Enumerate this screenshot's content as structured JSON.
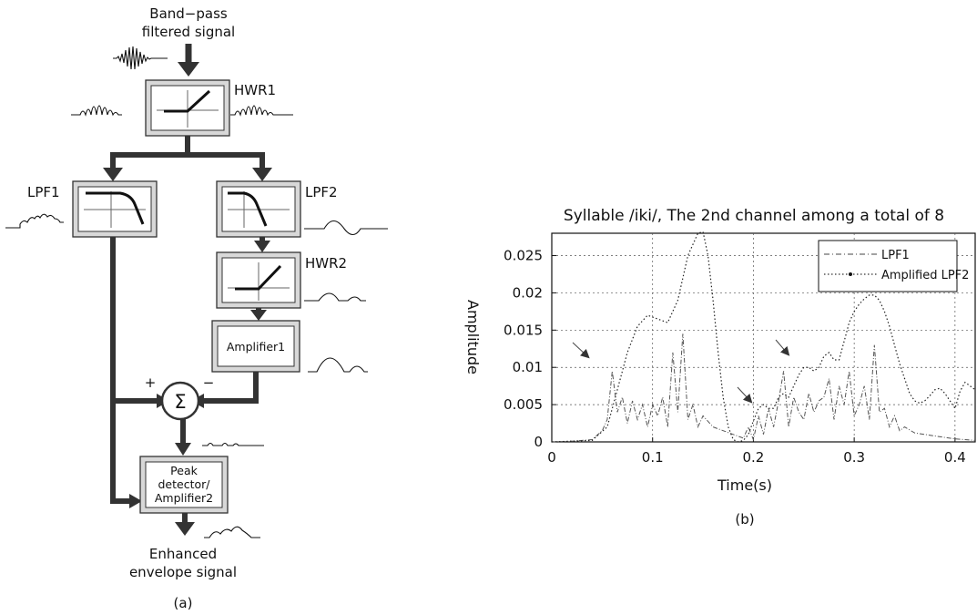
{
  "panel_a": {
    "input_label_1": "Band−pass",
    "input_label_2": "filtered signal",
    "hwr1": "HWR1",
    "lpf1": "LPF1",
    "lpf2": "LPF2",
    "hwr2": "HWR2",
    "amplifier1": "Amplifier1",
    "plus": "+",
    "minus": "−",
    "sigma": "Σ",
    "peak_1": "Peak",
    "peak_2": "detector/",
    "peak_3": "Amplifier2",
    "output_label_1": "Enhanced",
    "output_label_2": "envelope signal",
    "caption": "(a)"
  },
  "panel_b": {
    "caption": "(b)"
  },
  "chart_data": {
    "type": "line",
    "title": "Syllable /iki/, The 2nd channel among a total of 8",
    "xlabel": "Time(s)",
    "ylabel": "Amplitude",
    "xlim": [
      0,
      0.42
    ],
    "ylim": [
      0,
      0.028
    ],
    "xticks": [
      0,
      0.1,
      0.2,
      0.3,
      0.4
    ],
    "xtick_labels": [
      "0",
      "0.1",
      "0.2",
      "0.3",
      "0.4"
    ],
    "yticks": [
      0,
      0.005,
      0.01,
      0.015,
      0.02,
      0.025
    ],
    "ytick_labels": [
      "0",
      "0.005",
      "0.01",
      "0.015",
      "0.02",
      "0.025"
    ],
    "grid": true,
    "legend_position": "top-right",
    "series": [
      {
        "name": "LPF1",
        "style": "dash-dot",
        "x": [
          0.0,
          0.02,
          0.04,
          0.05,
          0.055,
          0.06,
          0.065,
          0.07,
          0.075,
          0.08,
          0.085,
          0.09,
          0.095,
          0.1,
          0.105,
          0.11,
          0.115,
          0.12,
          0.125,
          0.13,
          0.135,
          0.14,
          0.145,
          0.15,
          0.16,
          0.17,
          0.18,
          0.19,
          0.195,
          0.2,
          0.205,
          0.21,
          0.215,
          0.22,
          0.225,
          0.23,
          0.235,
          0.24,
          0.245,
          0.25,
          0.255,
          0.26,
          0.265,
          0.27,
          0.275,
          0.28,
          0.285,
          0.29,
          0.295,
          0.3,
          0.305,
          0.31,
          0.315,
          0.32,
          0.325,
          0.33,
          0.335,
          0.34,
          0.345,
          0.35,
          0.36,
          0.37,
          0.38,
          0.39,
          0.4,
          0.41,
          0.42
        ],
        "y": [
          0.0,
          0.0001,
          0.0003,
          0.0015,
          0.003,
          0.0095,
          0.004,
          0.006,
          0.0025,
          0.0055,
          0.003,
          0.005,
          0.002,
          0.005,
          0.0035,
          0.006,
          0.002,
          0.012,
          0.004,
          0.0145,
          0.003,
          0.005,
          0.002,
          0.0035,
          0.002,
          0.0015,
          0.001,
          0.0005,
          0.002,
          0.0003,
          0.0035,
          0.001,
          0.0045,
          0.002,
          0.0055,
          0.0095,
          0.002,
          0.006,
          0.004,
          0.003,
          0.0065,
          0.004,
          0.0055,
          0.006,
          0.0085,
          0.003,
          0.0075,
          0.005,
          0.0095,
          0.0035,
          0.005,
          0.0075,
          0.003,
          0.013,
          0.004,
          0.0045,
          0.002,
          0.0035,
          0.0015,
          0.002,
          0.0012,
          0.001,
          0.0008,
          0.0006,
          0.0004,
          0.0003,
          0.0002
        ]
      },
      {
        "name": "Amplified LPF2",
        "style": "dotted-with-dot-markers",
        "x": [
          0.0,
          0.04,
          0.055,
          0.065,
          0.075,
          0.085,
          0.095,
          0.105,
          0.115,
          0.125,
          0.135,
          0.145,
          0.15,
          0.155,
          0.16,
          0.165,
          0.17,
          0.175,
          0.18,
          0.185,
          0.19,
          0.195,
          0.2,
          0.205,
          0.21,
          0.215,
          0.22,
          0.225,
          0.23,
          0.235,
          0.24,
          0.245,
          0.25,
          0.255,
          0.26,
          0.265,
          0.27,
          0.275,
          0.28,
          0.285,
          0.29,
          0.295,
          0.3,
          0.305,
          0.31,
          0.315,
          0.32,
          0.325,
          0.33,
          0.335,
          0.34,
          0.345,
          0.35,
          0.355,
          0.36,
          0.365,
          0.37,
          0.375,
          0.38,
          0.385,
          0.39,
          0.395,
          0.4,
          0.405,
          0.41,
          0.415,
          0.42
        ],
        "y": [
          0.0,
          0.0002,
          0.002,
          0.007,
          0.012,
          0.0155,
          0.017,
          0.0165,
          0.016,
          0.019,
          0.025,
          0.028,
          0.0282,
          0.025,
          0.019,
          0.012,
          0.006,
          0.002,
          0.0003,
          0.0,
          0.0002,
          0.001,
          0.0028,
          0.0045,
          0.005,
          0.0045,
          0.0045,
          0.006,
          0.0065,
          0.006,
          0.0075,
          0.009,
          0.01,
          0.01,
          0.0095,
          0.01,
          0.0115,
          0.012,
          0.011,
          0.011,
          0.0135,
          0.016,
          0.0175,
          0.0185,
          0.0192,
          0.0197,
          0.0197,
          0.019,
          0.0175,
          0.0155,
          0.013,
          0.0105,
          0.0085,
          0.0065,
          0.0055,
          0.0052,
          0.0055,
          0.0062,
          0.007,
          0.0072,
          0.0065,
          0.0055,
          0.0045,
          0.0068,
          0.008,
          0.0075,
          0.007
        ]
      }
    ]
  }
}
